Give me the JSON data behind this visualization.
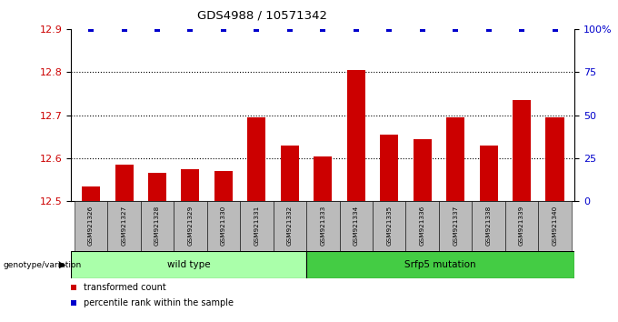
{
  "title": "GDS4988 / 10571342",
  "samples": [
    "GSM921326",
    "GSM921327",
    "GSM921328",
    "GSM921329",
    "GSM921330",
    "GSM921331",
    "GSM921332",
    "GSM921333",
    "GSM921334",
    "GSM921335",
    "GSM921336",
    "GSM921337",
    "GSM921338",
    "GSM921339",
    "GSM921340"
  ],
  "bar_values": [
    12.535,
    12.585,
    12.565,
    12.575,
    12.57,
    12.695,
    12.63,
    12.605,
    12.805,
    12.655,
    12.645,
    12.695,
    12.63,
    12.735,
    12.695
  ],
  "percentile_values": [
    100,
    100,
    100,
    100,
    100,
    100,
    100,
    100,
    100,
    100,
    100,
    100,
    100,
    100,
    100
  ],
  "ymin": 12.5,
  "ymax": 12.9,
  "y2min": 0,
  "y2max": 100,
  "yticks": [
    12.5,
    12.6,
    12.7,
    12.8,
    12.9
  ],
  "y2ticks": [
    0,
    25,
    50,
    75,
    100
  ],
  "y2ticklabels": [
    "0",
    "25",
    "50",
    "75",
    "100%"
  ],
  "bar_color": "#cc0000",
  "dot_color": "#0000cc",
  "tick_area_color": "#bbbbbb",
  "wild_type_color": "#aaffaa",
  "mutation_color": "#44cc44",
  "wild_type_label": "wild type",
  "mutation_label": "Srfp5 mutation",
  "genotype_label": "genotype/variation",
  "legend_bar_label": "transformed count",
  "legend_dot_label": "percentile rank within the sample",
  "wild_type_count": 7,
  "mutation_count": 8
}
